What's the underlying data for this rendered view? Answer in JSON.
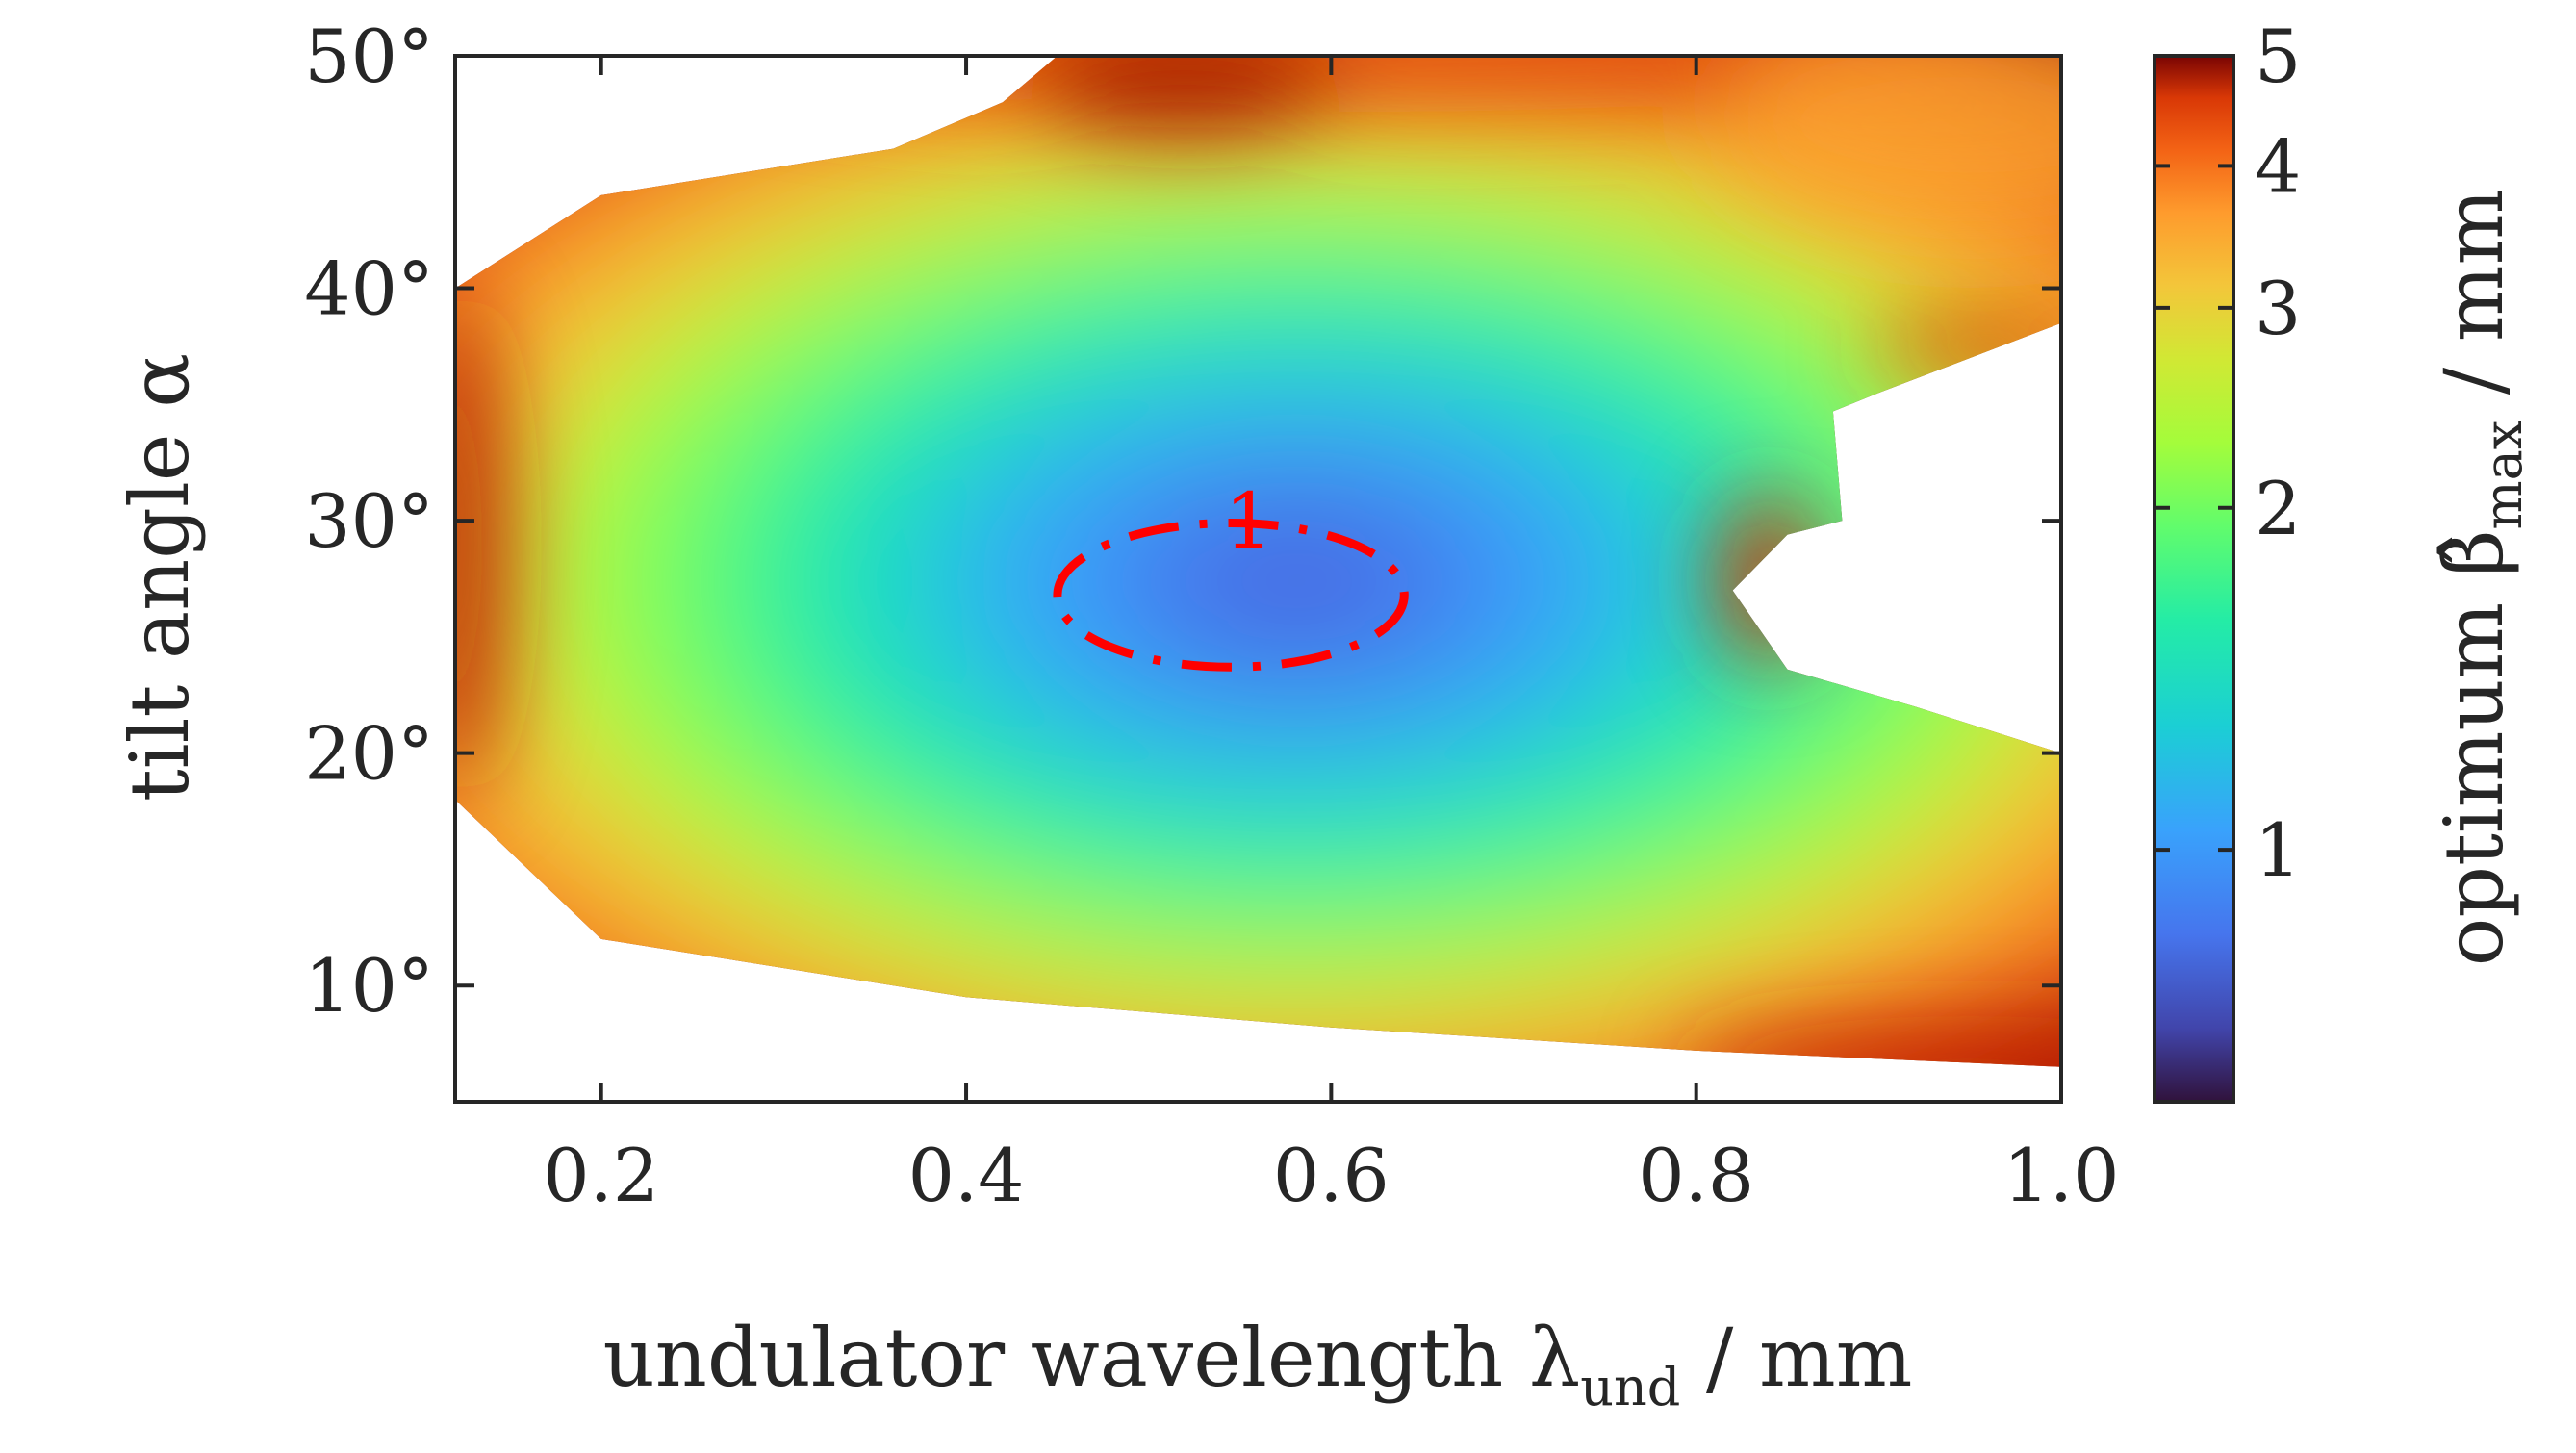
{
  "chart_data": {
    "type": "heatmap",
    "title": "",
    "xlabel": {
      "main": "undulator wavelength λ",
      "sub": "und",
      "unit": " / mm"
    },
    "ylabel": {
      "main": "tilt angle α"
    },
    "xlim": [
      0.12,
      1.0
    ],
    "ylim": [
      5,
      50
    ],
    "x_ticks": [
      0.2,
      0.4,
      0.6,
      0.8,
      1.0
    ],
    "x_tick_labels": [
      "0.2",
      "0.4",
      "0.6",
      "0.8",
      "1.0"
    ],
    "y_ticks": [
      10,
      20,
      30,
      40,
      50
    ],
    "y_tick_labels": [
      "10°",
      "20°",
      "30°",
      "40°",
      "50°"
    ],
    "colorbar": {
      "label_main": "optimum β̂",
      "label_sub": "max",
      "label_unit": " / mm",
      "scale": "log",
      "range": [
        0.6,
        5
      ],
      "ticks": [
        1,
        2,
        3,
        4,
        5
      ],
      "tick_labels": [
        "1",
        "2",
        "3",
        "4",
        "5"
      ],
      "colormap": "turbo"
    },
    "contour": {
      "level": 1,
      "label": "1",
      "style": "dash-dot",
      "color": "#ff0000"
    },
    "feasible_region": {
      "left_boundary": [
        [
          0.12,
          18
        ],
        [
          0.12,
          40
        ],
        [
          0.2,
          44
        ],
        [
          0.36,
          46
        ],
        [
          0.42,
          48
        ],
        [
          0.45,
          50
        ]
      ],
      "lower_boundary": [
        [
          0.12,
          18
        ],
        [
          0.2,
          12
        ],
        [
          0.4,
          9.5
        ],
        [
          0.6,
          8.2
        ],
        [
          0.8,
          7.2
        ],
        [
          1.0,
          6.5
        ]
      ],
      "right_hole": [
        [
          1.0,
          38.5
        ],
        [
          0.9,
          35.5
        ],
        [
          0.875,
          34.7
        ],
        [
          0.88,
          30
        ],
        [
          0.85,
          29.4
        ],
        [
          0.82,
          27
        ],
        [
          0.85,
          23.6
        ],
        [
          0.92,
          22
        ],
        [
          1.0,
          20
        ]
      ]
    },
    "minimum": {
      "x": 0.56,
      "y": 27,
      "value": 0.8
    }
  }
}
